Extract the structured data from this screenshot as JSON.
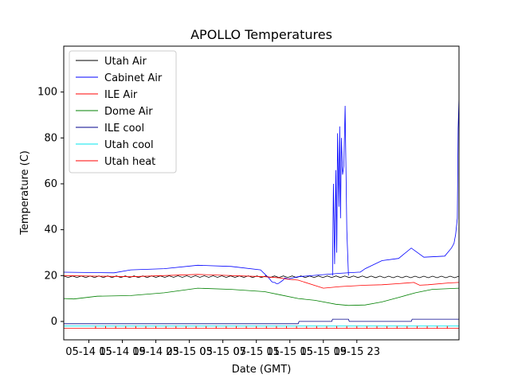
{
  "chart_data": {
    "type": "line",
    "title": "APOLLO Temperatures",
    "xlabel": "Date (GMT)",
    "ylabel": "Temperature (C)",
    "xlim": [
      12,
      59.2
    ],
    "ylim": [
      -8,
      120
    ],
    "yticks": [
      0,
      20,
      40,
      60,
      80,
      100
    ],
    "xticks": [
      {
        "label": "05-14 15",
        "hour": 15
      },
      {
        "label": "05-14 19",
        "hour": 19
      },
      {
        "label": "05-14 23",
        "hour": 23
      },
      {
        "label": "05-15 03",
        "hour": 27
      },
      {
        "label": "05-15 07",
        "hour": 31
      },
      {
        "label": "05-15 11",
        "hour": 35
      },
      {
        "label": "05-15 15",
        "hour": 39
      },
      {
        "label": "05-15 19",
        "hour": 43
      },
      {
        "label": "05-15 23",
        "hour": 47
      }
    ],
    "x_unit_note": "x values are hours since 05-14 00 GMT",
    "legend_position": "top-left",
    "series": [
      {
        "name": "Utah Air",
        "color": "#000000",
        "x": [
          12,
          20,
          28,
          36,
          44,
          52,
          59.2
        ],
        "y": [
          19.5,
          19.5,
          19.6,
          19.5,
          19.5,
          19.4,
          19.4
        ],
        "sawtooth": true
      },
      {
        "name": "Cabinet Air",
        "color": "#0000ff",
        "x": [
          12,
          18,
          20,
          24,
          28,
          32,
          35.5,
          36.2,
          36.6,
          36.8,
          37,
          37.2,
          37.4,
          37.6,
          37.8,
          38,
          38.2,
          38.4,
          38.8,
          40,
          45,
          47.2,
          47.4,
          48,
          50,
          52,
          53.5,
          55,
          57.5,
          58.3,
          58.6,
          58.8,
          59,
          59.1,
          59.2
        ],
        "y": [
          21.5,
          21.2,
          22.5,
          23,
          24.5,
          24,
          22.5,
          20,
          18.5,
          17.5,
          17,
          17,
          16.5,
          16.5,
          17,
          17.5,
          18,
          19,
          18.5,
          19.5,
          21,
          21.5,
          21.5,
          23,
          26.5,
          27.5,
          32,
          28,
          28.5,
          32,
          34,
          38,
          45,
          84,
          98
        ]
      },
      {
        "name": "ILE Air",
        "color": "#ff0000",
        "x": [
          12,
          20,
          28,
          36,
          37.8,
          38.6,
          40,
          43,
          45,
          48,
          50,
          52,
          53.8,
          54.5,
          55.5,
          58,
          59.2
        ],
        "y": [
          20,
          19.5,
          20.5,
          19.5,
          19,
          18.5,
          18,
          14.5,
          15.2,
          15.8,
          16,
          16.5,
          17,
          15.8,
          16,
          16.8,
          17
        ]
      },
      {
        "name": "Dome Air",
        "color": "#008000",
        "x": [
          12,
          13.2,
          16,
          20,
          24,
          28,
          32,
          36,
          38,
          40,
          42,
          44.5,
          46,
          48,
          50,
          52,
          54,
          56,
          59.2
        ],
        "y": [
          10,
          9.8,
          11,
          11.3,
          12.5,
          14.5,
          14,
          13,
          11.5,
          10,
          9.2,
          7.5,
          7,
          7.2,
          8.5,
          10.5,
          12.5,
          14,
          14.5
        ]
      },
      {
        "name": "ILE cool",
        "color": "#00008b",
        "x": [
          12,
          40,
          40.1,
          44,
          44.1,
          46,
          46.1,
          53.5,
          53.6,
          59.2
        ],
        "y": [
          -1,
          -1,
          0,
          0,
          1,
          1,
          0,
          0,
          1,
          1
        ]
      },
      {
        "name": "Utah cool",
        "color": "#00e5ee",
        "x": [
          12,
          59.2
        ],
        "y": [
          -2,
          -2
        ]
      },
      {
        "name": "Utah heat",
        "color": "#ff0000",
        "x": [
          12,
          59.2
        ],
        "y": [
          -3,
          -3
        ],
        "ticks_every_hours": 1.2
      }
    ],
    "spikes": {
      "series": "Cabinet Air",
      "x": [
        44.1,
        44.2,
        44.35,
        44.5,
        44.6,
        44.7,
        44.85,
        44.95,
        45.05,
        45.15,
        45.3,
        45.45,
        45.6,
        45.8,
        46
      ],
      "y": [
        20,
        60,
        25,
        66,
        30,
        82,
        50,
        85,
        45,
        80,
        64,
        68,
        94,
        40,
        20
      ]
    }
  }
}
